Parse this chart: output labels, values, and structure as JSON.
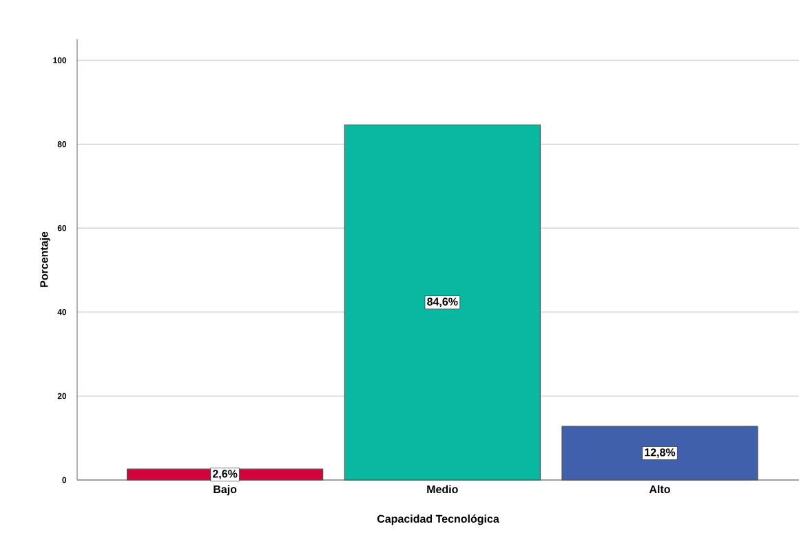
{
  "chart_data": {
    "type": "bar",
    "xlabel": "Capacidad Tecnológica",
    "ylabel": "Porcentaje",
    "categories": [
      "Bajo",
      "Medio",
      "Alto"
    ],
    "values": [
      2.6,
      84.6,
      12.8
    ],
    "colors": [
      "#d2043c",
      "#08b8a1",
      "#4160ab"
    ],
    "value_labels": [
      "2,6%",
      "84,6%",
      "12,8%"
    ],
    "ylim": [
      0,
      105
    ],
    "yticks": [
      0,
      20,
      40,
      60,
      80,
      100
    ],
    "grid": "y"
  }
}
